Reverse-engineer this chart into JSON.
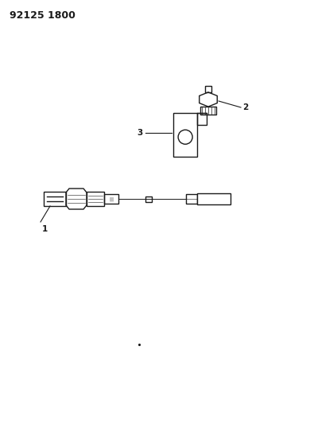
{
  "title": "92125 1800",
  "background_color": "#ffffff",
  "line_color": "#1a1a1a",
  "figsize": [
    3.9,
    5.33
  ],
  "dpi": 100,
  "title_fontsize": 9,
  "label_fontsize": 7.5
}
